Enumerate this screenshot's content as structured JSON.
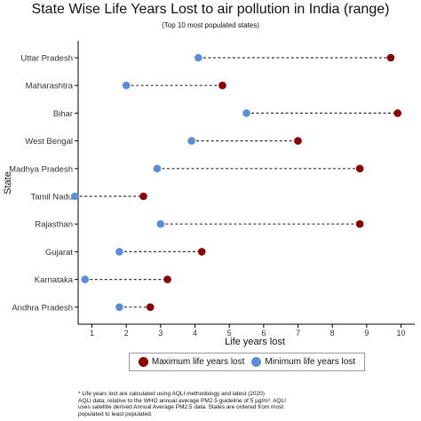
{
  "chart_data": {
    "type": "dumbbell",
    "title": "State Wise Life Years Lost to air pollution in India (range)",
    "subtitle": "(Top 10 most populated states)",
    "xlabel": "Life years lost",
    "ylabel": "State",
    "xlim": [
      0.6,
      10.4
    ],
    "xticks": [
      "1",
      "2",
      "3",
      "4",
      "5",
      "6",
      "7",
      "8",
      "9",
      "10"
    ],
    "categories": [
      "Uttar Pradesh",
      "Maharashtra",
      "Bihar",
      "West Bengal",
      "Madhya Pradesh",
      "Tamil Nadu",
      "Rajasthan",
      "Gujarat",
      "Karnataka",
      "Andhra Pradesh"
    ],
    "series": [
      {
        "name": "Maximum life years lost",
        "color": "#8b0000",
        "values": [
          9.7,
          4.8,
          9.9,
          7.0,
          8.8,
          2.5,
          8.8,
          4.2,
          3.2,
          2.7
        ]
      },
      {
        "name": "Minimum life years lost",
        "color": "#5b8dd9",
        "values": [
          4.1,
          2.0,
          5.5,
          3.9,
          2.9,
          0.5,
          3.0,
          1.8,
          0.8,
          1.8
        ]
      }
    ],
    "grid": false,
    "legend_position": "bottom"
  },
  "footnote": [
    "* Life years lost are calculated using AQLI methodology and latest (2020)",
    "AQLI data, relative to the WHO annual average PM2.5 guideline of 5 µg/m³. AQLI",
    "uses satellite derived Annual Average PM2.5 data. States are ordered from most",
    "populated to least populated."
  ]
}
